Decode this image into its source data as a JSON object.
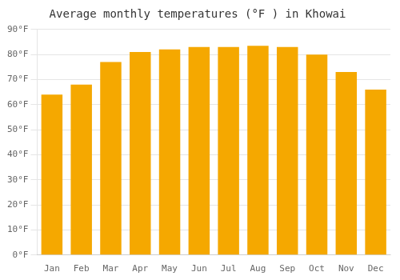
{
  "chart_data": {
    "type": "bar",
    "title": "Average monthly temperatures (°F ) in Khowai",
    "categories": [
      "Jan",
      "Feb",
      "Mar",
      "Apr",
      "May",
      "Jun",
      "Jul",
      "Aug",
      "Sep",
      "Oct",
      "Nov",
      "Dec"
    ],
    "values": [
      64,
      68,
      77,
      81,
      82,
      83,
      83,
      83.5,
      83,
      80,
      73,
      66
    ],
    "color": "#F5A800",
    "ylim": [
      0,
      90
    ],
    "yticks": [
      {
        "value": 0,
        "label": "0°F"
      },
      {
        "value": 10,
        "label": "10°F"
      },
      {
        "value": 20,
        "label": "20°F"
      },
      {
        "value": 30,
        "label": "30°F"
      },
      {
        "value": 40,
        "label": "40°F"
      },
      {
        "value": 50,
        "label": "50°F"
      },
      {
        "value": 60,
        "label": "60°F"
      },
      {
        "value": 70,
        "label": "70°F"
      },
      {
        "value": 80,
        "label": "80°F"
      },
      {
        "value": 90,
        "label": "90°F"
      }
    ],
    "grid": true
  }
}
